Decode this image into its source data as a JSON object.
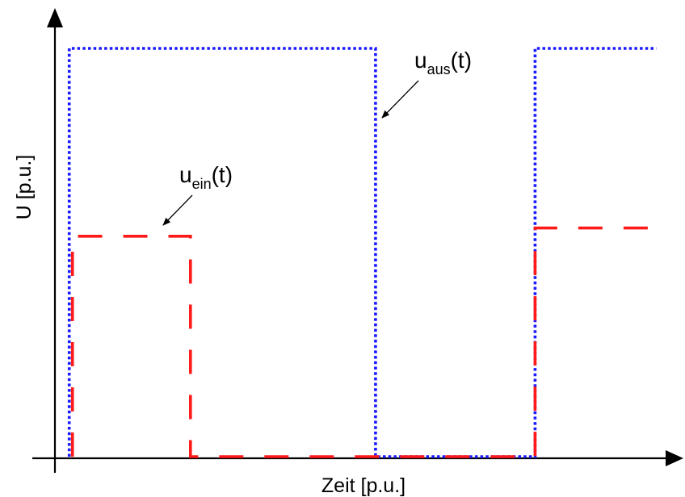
{
  "chart_data": {
    "type": "line",
    "xlabel": "Zeit [p.u.]",
    "ylabel": "U [p.u.]",
    "xlim": [
      0,
      100
    ],
    "ylim": [
      0,
      100
    ],
    "series": [
      {
        "name": "u_aus(t)",
        "label_main": "u",
        "label_sub": "aus",
        "label_tail": "(t)",
        "color": "#1a1aff",
        "style": "dotted",
        "x": [
          3,
          3,
          51,
          51,
          76,
          76,
          95
        ],
        "y": [
          0,
          100,
          100,
          0,
          0,
          100,
          100
        ]
      },
      {
        "name": "u_ein(t)",
        "label_main": "u",
        "label_sub": "ein",
        "label_tail": "(t)",
        "color": "#ff1a1a",
        "style": "dashed",
        "x": [
          3.5,
          3.5,
          22,
          22,
          76,
          76,
          95
        ],
        "y": [
          0,
          54,
          54,
          0,
          0,
          56,
          56
        ]
      }
    ]
  }
}
